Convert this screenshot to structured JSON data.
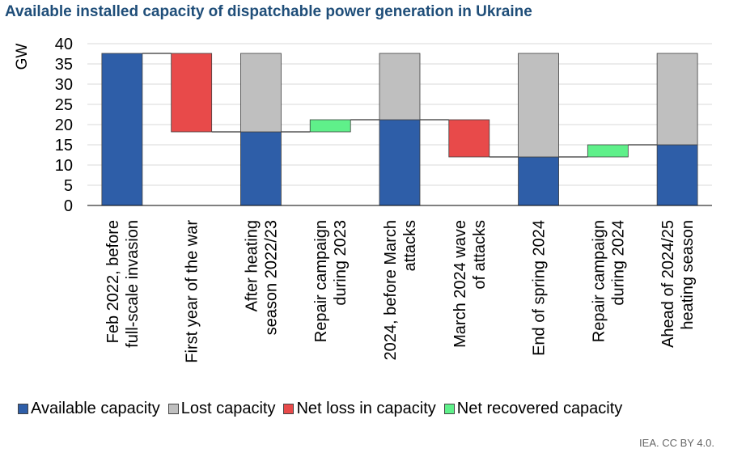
{
  "title": "Available installed capacity of dispatchable power generation in Ukraine",
  "credit": "IEA. CC BY 4.0.",
  "colors": {
    "available": "#2e5ea8",
    "lost": "#bfbfbf",
    "loss": "#e84a4a",
    "recovered": "#5ff08a"
  },
  "legend": [
    {
      "label": "Available capacity",
      "key": "available"
    },
    {
      "label": "Lost capacity",
      "key": "lost"
    },
    {
      "label": "Net loss in capacity",
      "key": "loss"
    },
    {
      "label": "Net recovered capacity",
      "key": "recovered"
    }
  ],
  "chart_data": {
    "type": "bar",
    "subtype": "waterfall",
    "ylabel": "GW",
    "ylim": [
      0,
      40
    ],
    "yticks": [
      0,
      5,
      10,
      15,
      20,
      25,
      30,
      35,
      40
    ],
    "grid": true,
    "legend_position": "bottom",
    "categories": [
      [
        "Feb 2022, before",
        "full-scale invasion"
      ],
      [
        "First year of the war"
      ],
      [
        "After heating",
        "season 2022/23"
      ],
      [
        "Repair campaign",
        "during 2023"
      ],
      [
        "2024, before March",
        "attacks"
      ],
      [
        "March 2024 wave",
        "of attacks"
      ],
      [
        "End of spring 2024"
      ],
      [
        "Repair campaign",
        "during 2024"
      ],
      [
        "Ahead of 2024/25",
        "heating season"
      ]
    ],
    "bars": [
      {
        "segments": [
          {
            "series": "available",
            "from": 0,
            "to": 37.6
          }
        ]
      },
      {
        "segments": [
          {
            "series": "loss",
            "from": 18.2,
            "to": 37.6
          }
        ]
      },
      {
        "segments": [
          {
            "series": "available",
            "from": 0,
            "to": 18.2
          },
          {
            "series": "lost",
            "from": 18.2,
            "to": 37.6
          }
        ]
      },
      {
        "segments": [
          {
            "series": "recovered",
            "from": 18.2,
            "to": 21.2
          }
        ]
      },
      {
        "segments": [
          {
            "series": "available",
            "from": 0,
            "to": 21.2
          },
          {
            "series": "lost",
            "from": 21.2,
            "to": 37.6
          }
        ]
      },
      {
        "segments": [
          {
            "series": "loss",
            "from": 12.0,
            "to": 21.2
          }
        ]
      },
      {
        "segments": [
          {
            "series": "available",
            "from": 0,
            "to": 12.0
          },
          {
            "series": "lost",
            "from": 12.0,
            "to": 37.6
          }
        ]
      },
      {
        "segments": [
          {
            "series": "recovered",
            "from": 12.0,
            "to": 15.0
          }
        ]
      },
      {
        "segments": [
          {
            "series": "available",
            "from": 0,
            "to": 15.0
          },
          {
            "series": "lost",
            "from": 15.0,
            "to": 37.6
          }
        ]
      }
    ],
    "connectors": [
      37.6,
      18.2,
      18.2,
      21.2,
      21.2,
      12.0,
      12.0,
      15.0
    ]
  }
}
